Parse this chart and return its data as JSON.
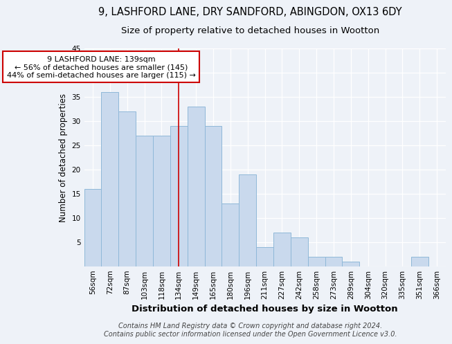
{
  "title1": "9, LASHFORD LANE, DRY SANDFORD, ABINGDON, OX13 6DY",
  "title2": "Size of property relative to detached houses in Wootton",
  "xlabel": "Distribution of detached houses by size in Wootton",
  "ylabel": "Number of detached properties",
  "footer": "Contains HM Land Registry data © Crown copyright and database right 2024.\nContains public sector information licensed under the Open Government Licence v3.0.",
  "categories": [
    "56sqm",
    "72sqm",
    "87sqm",
    "103sqm",
    "118sqm",
    "134sqm",
    "149sqm",
    "165sqm",
    "180sqm",
    "196sqm",
    "211sqm",
    "227sqm",
    "242sqm",
    "258sqm",
    "273sqm",
    "289sqm",
    "304sqm",
    "320sqm",
    "335sqm",
    "351sqm",
    "366sqm"
  ],
  "values": [
    16,
    36,
    32,
    27,
    27,
    29,
    33,
    29,
    13,
    19,
    4,
    7,
    6,
    2,
    2,
    1,
    0,
    0,
    0,
    2,
    0
  ],
  "bar_color": "#c9d9ed",
  "bar_edge_color": "#8fb8d8",
  "property_line_x": 5,
  "annotation_text": "9 LASHFORD LANE: 139sqm\n← 56% of detached houses are smaller (145)\n44% of semi-detached houses are larger (115) →",
  "annotation_box_color": "#ffffff",
  "annotation_box_edge": "#cc0000",
  "vline_color": "#cc0000",
  "ylim": [
    0,
    45
  ],
  "yticks": [
    0,
    5,
    10,
    15,
    20,
    25,
    30,
    35,
    40,
    45
  ],
  "background_color": "#eef2f8",
  "grid_color": "#ffffff",
  "title1_fontsize": 10.5,
  "title2_fontsize": 9.5,
  "xlabel_fontsize": 9.5,
  "ylabel_fontsize": 8.5,
  "footer_fontsize": 7.0,
  "tick_fontsize": 7.5
}
